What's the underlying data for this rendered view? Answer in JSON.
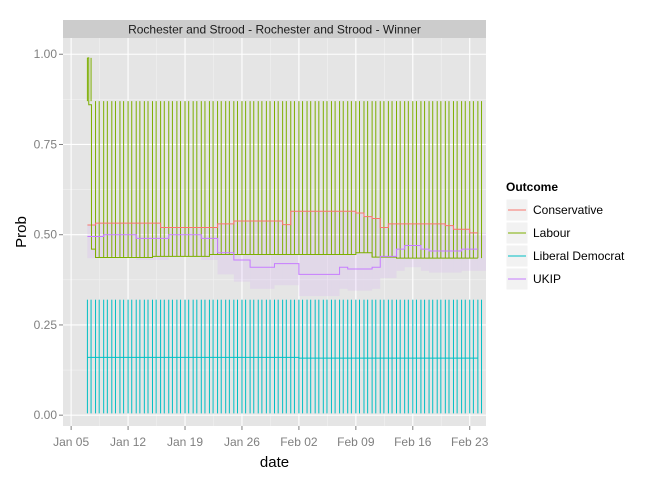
{
  "chart_data": {
    "type": "line",
    "title": "Rochester and Strood - Rochester and Strood - Winner",
    "xlabel": "date",
    "ylabel": "Prob",
    "x_ticks": [
      "Jan 05",
      "Jan 12",
      "Jan 19",
      "Jan 26",
      "Feb 02",
      "Feb 09",
      "Feb 16",
      "Feb 23"
    ],
    "y_ticks": [
      "0.00",
      "0.25",
      "0.50",
      "0.75",
      "1.00"
    ],
    "xlim": [
      "2015-01-04T00:00",
      "2015-02-25T00:00"
    ],
    "ylim": [
      -0.03,
      1.045
    ],
    "grid": true,
    "legend": {
      "title": "Outcome",
      "position": "right"
    },
    "spike_days": [
      "2015-01-07",
      "2015-01-08",
      "2015-01-09",
      "2015-01-10",
      "2015-01-11",
      "2015-01-12",
      "2015-01-13",
      "2015-01-14",
      "2015-01-15",
      "2015-01-16",
      "2015-01-17",
      "2015-01-18",
      "2015-01-19",
      "2015-01-20",
      "2015-01-21",
      "2015-01-22",
      "2015-01-23",
      "2015-01-24",
      "2015-01-25",
      "2015-01-26",
      "2015-01-27",
      "2015-01-28",
      "2015-01-29",
      "2015-01-30",
      "2015-01-31",
      "2015-02-01",
      "2015-02-02",
      "2015-02-03",
      "2015-02-04",
      "2015-02-05",
      "2015-02-06",
      "2015-02-07",
      "2015-02-08",
      "2015-02-09",
      "2015-02-10",
      "2015-02-11",
      "2015-02-12",
      "2015-02-13",
      "2015-02-14",
      "2015-02-15",
      "2015-02-16",
      "2015-02-17",
      "2015-02-18",
      "2015-02-19",
      "2015-02-20",
      "2015-02-21",
      "2015-02-22",
      "2015-02-23",
      "2015-02-24"
    ],
    "series": [
      {
        "name": "Conservative",
        "color": "#F8766D",
        "x": [
          "2015-01-07",
          "2015-01-08",
          "2015-01-14",
          "2015-01-16",
          "2015-01-21",
          "2015-01-23",
          "2015-01-25",
          "2015-01-28",
          "2015-01-31",
          "2015-02-01",
          "2015-02-07",
          "2015-02-09",
          "2015-02-10",
          "2015-02-11",
          "2015-02-12",
          "2015-02-13",
          "2015-02-20",
          "2015-02-21",
          "2015-02-23",
          "2015-02-24"
        ],
        "values": [
          0.527,
          0.532,
          0.532,
          0.52,
          0.52,
          0.53,
          0.538,
          0.538,
          0.528,
          0.565,
          0.565,
          0.56,
          0.55,
          0.545,
          0.52,
          0.53,
          0.525,
          0.515,
          0.505,
          0.505
        ]
      },
      {
        "name": "Labour",
        "color": "#7CAE00",
        "x": [
          "2015-01-07",
          "2015-01-07T04:00",
          "2015-01-07T12:00",
          "2015-01-08",
          "2015-01-14",
          "2015-01-15",
          "2015-01-21",
          "2015-01-22",
          "2015-02-07",
          "2015-02-09",
          "2015-02-11",
          "2015-02-14",
          "2015-02-24"
        ],
        "values": [
          0.99,
          0.86,
          0.46,
          0.437,
          0.437,
          0.44,
          0.44,
          0.445,
          0.445,
          0.45,
          0.438,
          0.435,
          0.435
        ],
        "spike_top": 0.87
      },
      {
        "name": "Liberal Democrat",
        "color": "#00BFC4",
        "x": [
          "2015-01-07",
          "2015-02-01",
          "2015-02-02",
          "2015-02-24"
        ],
        "values": [
          0.16,
          0.16,
          0.158,
          0.158
        ],
        "spike_top": 0.32,
        "spike_bottom": 0.005
      },
      {
        "name": "UKIP",
        "color": "#C77CFF",
        "x": [
          "2015-01-07",
          "2015-01-09",
          "2015-01-13",
          "2015-01-17",
          "2015-01-21",
          "2015-01-23",
          "2015-01-25",
          "2015-01-27",
          "2015-01-30",
          "2015-02-02",
          "2015-02-04",
          "2015-02-07",
          "2015-02-08",
          "2015-02-11",
          "2015-02-12",
          "2015-02-14",
          "2015-02-15",
          "2015-02-17",
          "2015-02-18",
          "2015-02-20",
          "2015-02-22",
          "2015-02-24"
        ],
        "values": [
          0.495,
          0.5,
          0.49,
          0.5,
          0.49,
          0.45,
          0.43,
          0.41,
          0.42,
          0.39,
          0.39,
          0.41,
          0.405,
          0.41,
          0.44,
          0.46,
          0.47,
          0.46,
          0.455,
          0.455,
          0.46,
          0.46
        ]
      }
    ]
  }
}
